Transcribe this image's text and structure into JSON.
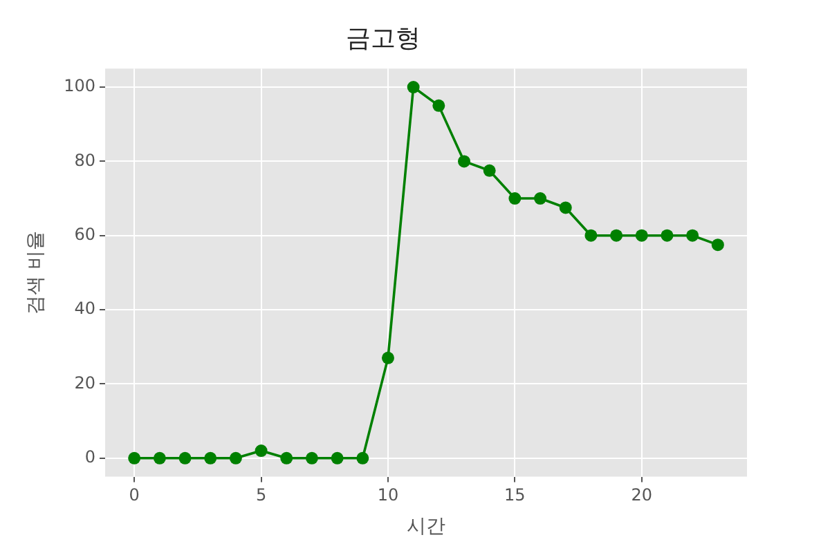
{
  "chart_data": {
    "type": "line",
    "title": "금고형",
    "xlabel": "시간",
    "ylabel": "검색 비율",
    "x": [
      0,
      1,
      2,
      3,
      4,
      5,
      6,
      7,
      8,
      9,
      10,
      11,
      12,
      13,
      14,
      15,
      16,
      17,
      18,
      19,
      20,
      21,
      22,
      23
    ],
    "series": [
      {
        "color": "#008000",
        "values": [
          0,
          0,
          0,
          0,
          0,
          2,
          0,
          0,
          0,
          0,
          27,
          100,
          95,
          80,
          77.5,
          70,
          70,
          67.5,
          60,
          60,
          60,
          60,
          60,
          57.5
        ]
      }
    ],
    "xlim": [
      -1.15,
      24.15
    ],
    "xticks": [
      0,
      5,
      10,
      15,
      20
    ],
    "ylim": [
      -5,
      105
    ],
    "yticks": [
      0,
      20,
      40,
      60,
      80,
      100
    ],
    "grid": true,
    "legend": false,
    "marker": "circle",
    "line_style": "solid"
  }
}
